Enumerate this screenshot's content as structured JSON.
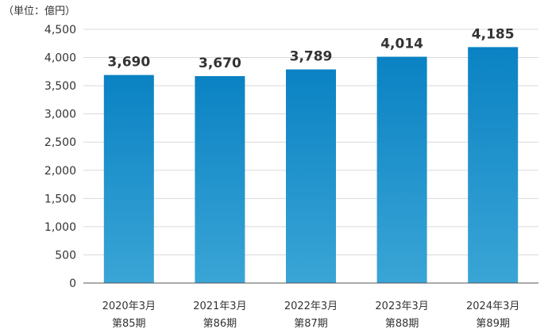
{
  "chart_data": {
    "type": "bar",
    "unit_label": "（単位：億円）",
    "categories": [
      [
        "2020年3月",
        "第85期"
      ],
      [
        "2021年3月",
        "第86期"
      ],
      [
        "2022年3月",
        "第87期"
      ],
      [
        "2023年3月",
        "第88期"
      ],
      [
        "2024年3月",
        "第89期"
      ]
    ],
    "values": [
      3690,
      3670,
      3789,
      4014,
      4185
    ],
    "data_labels": [
      "3,690",
      "3,670",
      "3,789",
      "4,014",
      "4,185"
    ],
    "ylim": [
      0,
      4500
    ],
    "yticks": [
      0,
      500,
      1000,
      1500,
      2000,
      2500,
      3000,
      3500,
      4000,
      4500
    ],
    "ytick_labels": [
      "0",
      "500",
      "1,000",
      "1,500",
      "2,000",
      "2,500",
      "3,000",
      "3,500",
      "4,000",
      "4,500"
    ],
    "grid": true,
    "colors": {
      "bar_top": "#0a82c3",
      "bar_bottom": "#3aa5d6",
      "grid": "#d9d9d9",
      "text": "#333333"
    }
  }
}
